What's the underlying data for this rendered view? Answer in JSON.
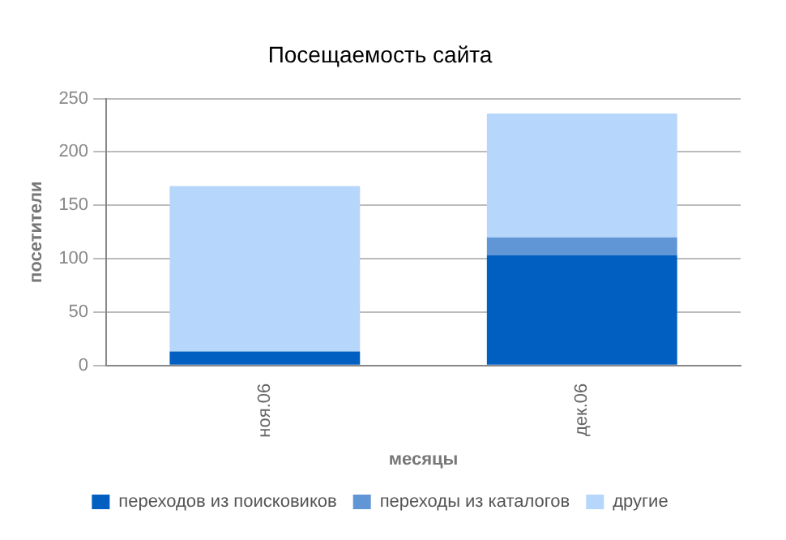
{
  "chart_data": {
    "type": "bar",
    "title": "Посещаемость сайта",
    "xlabel": "месяцы",
    "ylabel": "посетители",
    "categories": [
      "ноя.06",
      "дек.06"
    ],
    "stacked": true,
    "series": [
      {
        "name": "переходов из поисковиков",
        "color": "#005fc1",
        "values": [
          13,
          103
        ]
      },
      {
        "name": "переходы из каталогов",
        "color": "#6095d6",
        "values": [
          0,
          17
        ]
      },
      {
        "name": "другие",
        "color": "#b6d6fb",
        "values": [
          155,
          116
        ]
      }
    ],
    "ylim": [
      0,
      250
    ],
    "yticks": [
      0,
      50,
      100,
      150,
      200,
      250
    ],
    "grid": "y",
    "legend": "bottom"
  }
}
